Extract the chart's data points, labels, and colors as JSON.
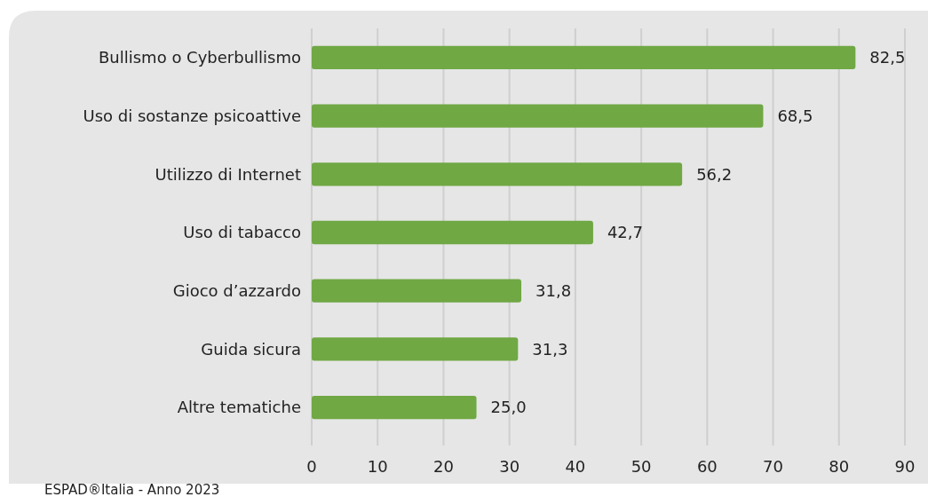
{
  "chart_data": {
    "type": "bar",
    "orientation": "horizontal",
    "categories": [
      "Bullismo o Cyberbullismo",
      "Uso di sostanze psicoattive",
      "Utilizzo di Internet",
      "Uso di tabacco",
      "Gioco d’azzardo",
      "Guida sicura",
      "Altre tematiche"
    ],
    "values": [
      82.5,
      68.5,
      56.2,
      42.7,
      31.8,
      31.3,
      25.0
    ],
    "value_labels": [
      "82,5",
      "68,5",
      "56,2",
      "42,7",
      "31,8",
      "31,3",
      "25,0"
    ],
    "color": "#70a844",
    "xlim": [
      0,
      90
    ],
    "xticks": [
      0,
      10,
      20,
      30,
      40,
      50,
      60,
      70,
      80,
      90
    ],
    "grid": "x",
    "annotations": [
      "ESPAD®Italia - Anno 2023"
    ]
  }
}
